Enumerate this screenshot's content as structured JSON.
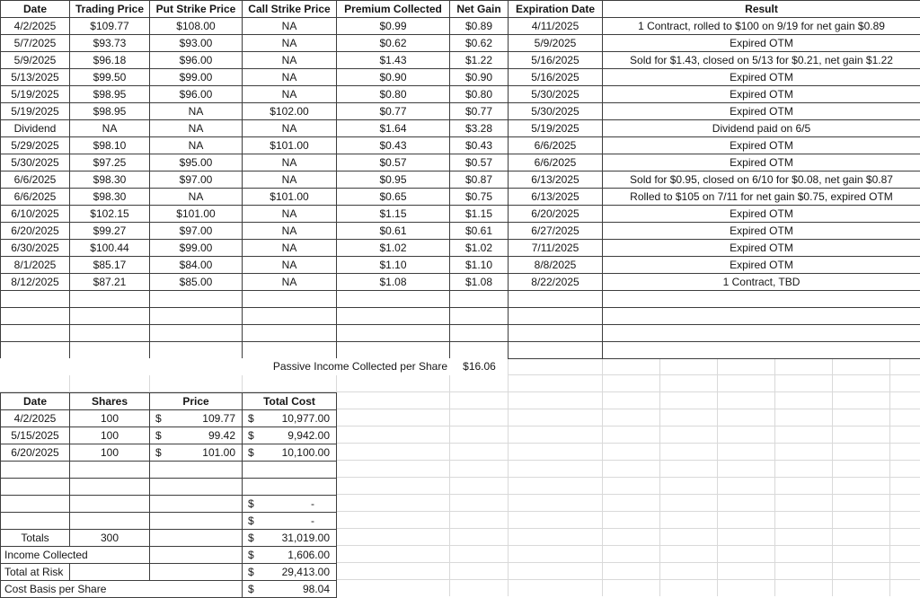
{
  "colors": {
    "border": "#3d3d3d",
    "gridline": "#d9d9d9",
    "text": "#161616",
    "background": "#ffffff"
  },
  "options_table": {
    "headers": [
      "Date",
      "Trading Price",
      "Put Strike Price",
      "Call Strike Price",
      "Premium Collected",
      "Net Gain",
      "Expiration Date",
      "Result"
    ],
    "rows": [
      [
        "4/2/2025",
        "$109.77",
        "$108.00",
        "NA",
        "$0.99",
        "$0.89",
        "4/11/2025",
        "1 Contract, rolled to $100 on 9/19 for net gain $0.89"
      ],
      [
        "5/7/2025",
        "$93.73",
        "$93.00",
        "NA",
        "$0.62",
        "$0.62",
        "5/9/2025",
        "Expired OTM"
      ],
      [
        "5/9/2025",
        "$96.18",
        "$96.00",
        "NA",
        "$1.43",
        "$1.22",
        "5/16/2025",
        "Sold for $1.43, closed on 5/13 for $0.21, net gain $1.22"
      ],
      [
        "5/13/2025",
        "$99.50",
        "$99.00",
        "NA",
        "$0.90",
        "$0.90",
        "5/16/2025",
        "Expired OTM"
      ],
      [
        "5/19/2025",
        "$98.95",
        "$96.00",
        "NA",
        "$0.80",
        "$0.80",
        "5/30/2025",
        "Expired OTM"
      ],
      [
        "5/19/2025",
        "$98.95",
        "NA",
        "$102.00",
        "$0.77",
        "$0.77",
        "5/30/2025",
        "Expired OTM"
      ],
      [
        "Dividend",
        "NA",
        "NA",
        "NA",
        "$1.64",
        "$3.28",
        "5/19/2025",
        "Dividend paid on 6/5"
      ],
      [
        "5/29/2025",
        "$98.10",
        "NA",
        "$101.00",
        "$0.43",
        "$0.43",
        "6/6/2025",
        "Expired OTM"
      ],
      [
        "5/30/2025",
        "$97.25",
        "$95.00",
        "NA",
        "$0.57",
        "$0.57",
        "6/6/2025",
        "Expired OTM"
      ],
      [
        "6/6/2025",
        "$98.30",
        "$97.00",
        "NA",
        "$0.95",
        "$0.87",
        "6/13/2025",
        "Sold for $0.95, closed on 6/10 for $0.08, net gain $0.87"
      ],
      [
        "6/6/2025",
        "$98.30",
        "NA",
        "$101.00",
        "$0.65",
        "$0.75",
        "6/13/2025",
        "Rolled to $105 on 7/11 for net gain $0.75, expired OTM"
      ],
      [
        "6/10/2025",
        "$102.15",
        "$101.00",
        "NA",
        "$1.15",
        "$1.15",
        "6/20/2025",
        "Expired OTM"
      ],
      [
        "6/20/2025",
        "$99.27",
        "$97.00",
        "NA",
        "$0.61",
        "$0.61",
        "6/27/2025",
        "Expired OTM"
      ],
      [
        "6/30/2025",
        "$100.44",
        "$99.00",
        "NA",
        "$1.02",
        "$1.02",
        "7/11/2025",
        "Expired OTM"
      ],
      [
        "8/1/2025",
        "$85.17",
        "$84.00",
        "NA",
        "$1.10",
        "$1.10",
        "8/8/2025",
        "Expired OTM"
      ],
      [
        "8/12/2025",
        "$87.21",
        "$85.00",
        "NA",
        "$1.08",
        "$1.08",
        "8/22/2025",
        "1 Contract, TBD"
      ]
    ],
    "empty_row_count": 4
  },
  "passive_income": {
    "label": "Passive Income Collected per Share",
    "value": "$16.06"
  },
  "purchases_table": {
    "headers": [
      "Date",
      "Shares",
      "Price",
      "Total Cost"
    ],
    "rows": [
      [
        {
          "t": "4/2/2025"
        },
        {
          "t": "100"
        },
        {
          "cur": "$",
          "amt": "109.77"
        },
        {
          "cur": "$",
          "amt": "10,977.00"
        }
      ],
      [
        {
          "t": "5/15/2025"
        },
        {
          "t": "100"
        },
        {
          "cur": "$",
          "amt": "99.42"
        },
        {
          "cur": "$",
          "amt": "9,942.00"
        }
      ],
      [
        {
          "t": "6/20/2025"
        },
        {
          "t": "100"
        },
        {
          "cur": "$",
          "amt": "101.00"
        },
        {
          "cur": "$",
          "amt": "10,100.00"
        }
      ],
      [
        {
          "t": ""
        },
        {
          "t": ""
        },
        {
          "t": ""
        },
        {
          "t": ""
        }
      ],
      [
        {
          "t": ""
        },
        {
          "t": ""
        },
        {
          "t": ""
        },
        {
          "t": ""
        }
      ],
      [
        {
          "t": ""
        },
        {
          "t": ""
        },
        {
          "t": ""
        },
        {
          "cur": "$",
          "amt": "-",
          "dash": true
        }
      ],
      [
        {
          "t": ""
        },
        {
          "t": ""
        },
        {
          "t": ""
        },
        {
          "cur": "$",
          "amt": "-",
          "dash": true
        }
      ],
      [
        {
          "t": "Totals"
        },
        {
          "t": "300"
        },
        {
          "t": ""
        },
        {
          "cur": "$",
          "amt": "31,019.00"
        }
      ],
      [
        {
          "t": "Income Collected",
          "span": 2,
          "align": "left"
        },
        {
          "t": ""
        },
        {
          "cur": "$",
          "amt": "1,606.00"
        }
      ],
      [
        {
          "t": "Total at Risk",
          "align": "left"
        },
        {
          "t": ""
        },
        {
          "t": ""
        },
        {
          "cur": "$",
          "amt": "29,413.00"
        }
      ],
      [
        {
          "t": "Cost Basis per Share",
          "span": 3,
          "align": "left"
        },
        {
          "cur": "$",
          "amt": "98.04"
        }
      ]
    ]
  }
}
